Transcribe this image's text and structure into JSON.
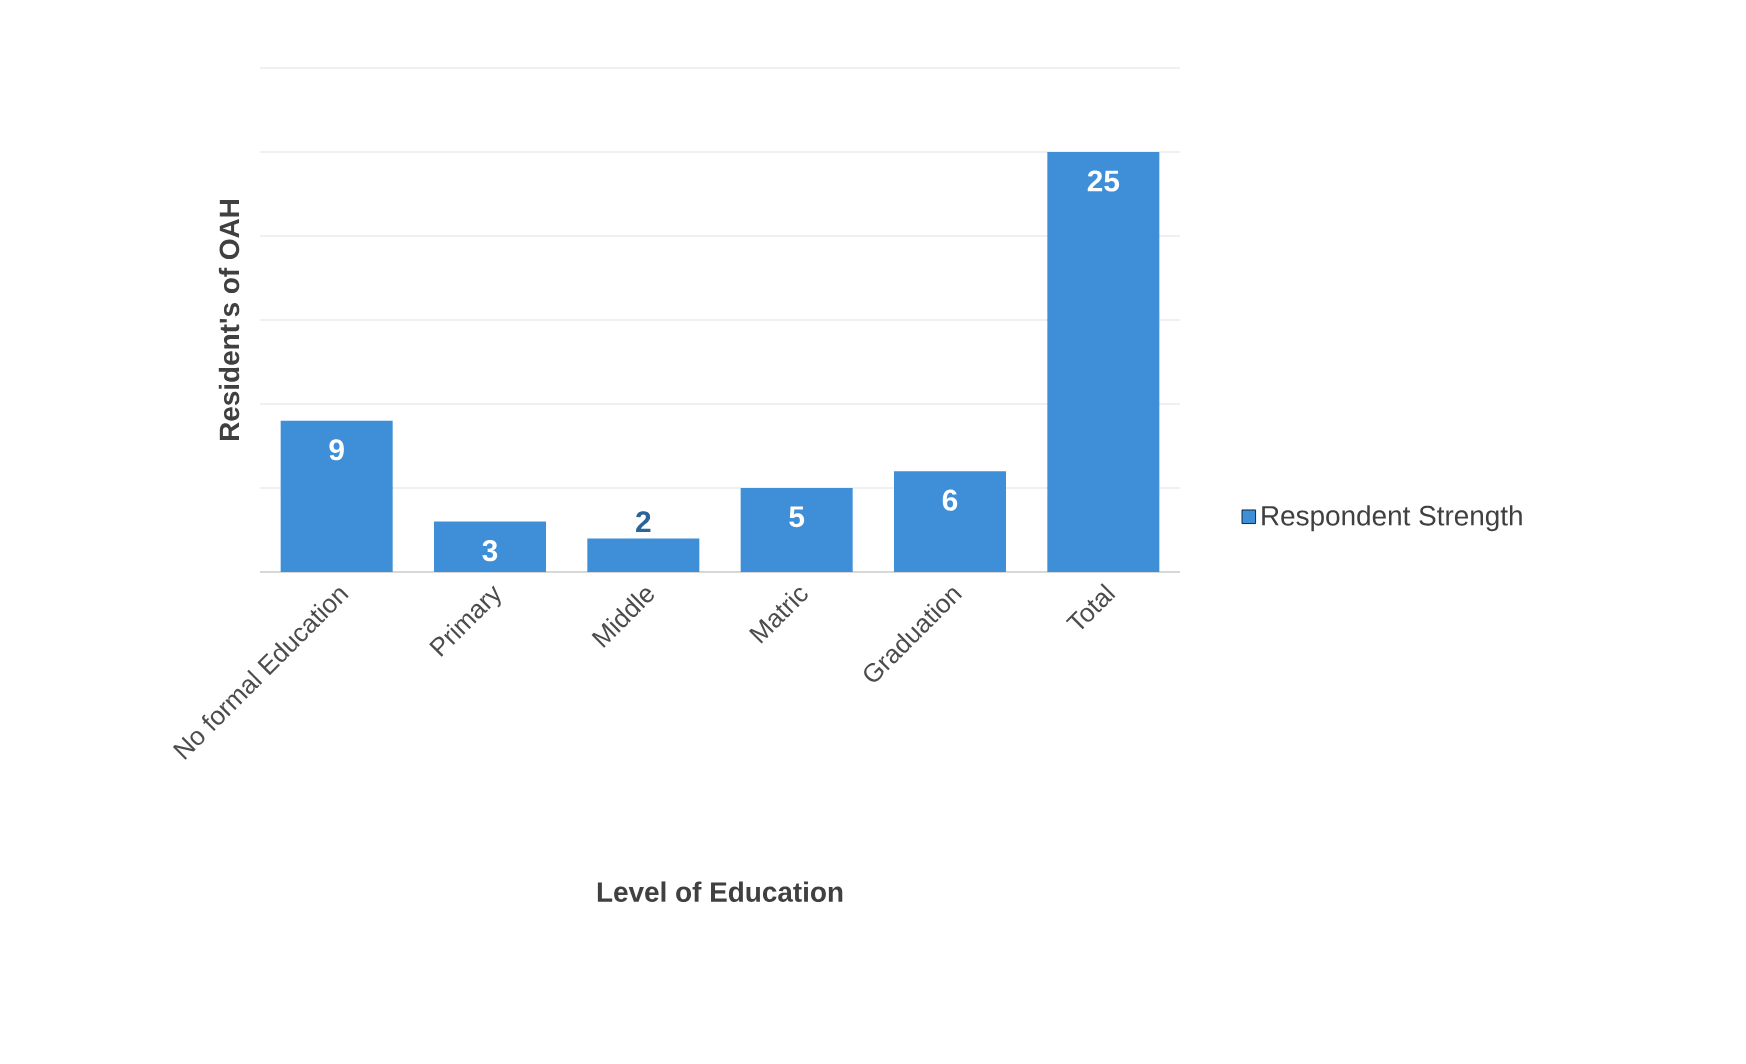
{
  "chart_data": {
    "type": "bar",
    "xlabel": "Level of Education",
    "ylabel": "Resident's of OAH",
    "categories": [
      "No formal Education",
      "Primary",
      "Middle",
      "Matric",
      "Graduation",
      "Total"
    ],
    "series": [
      {
        "name": "Respondent Strength",
        "color": "#3f8fd8",
        "values": [
          9,
          3,
          2,
          5,
          6,
          25
        ]
      }
    ],
    "ylim": [
      0,
      30
    ],
    "yticks": [
      {
        "value": 0,
        "label": null
      },
      {
        "value": 5,
        "label": null
      },
      {
        "value": 10,
        "label": null
      },
      {
        "value": 15,
        "label": null
      },
      {
        "value": 20,
        "label": null
      },
      {
        "value": 25,
        "label": null
      },
      {
        "value": 30,
        "label": null
      }
    ],
    "tick_labels": "x",
    "grid": "y",
    "legend": "right",
    "data_labels": true
  }
}
